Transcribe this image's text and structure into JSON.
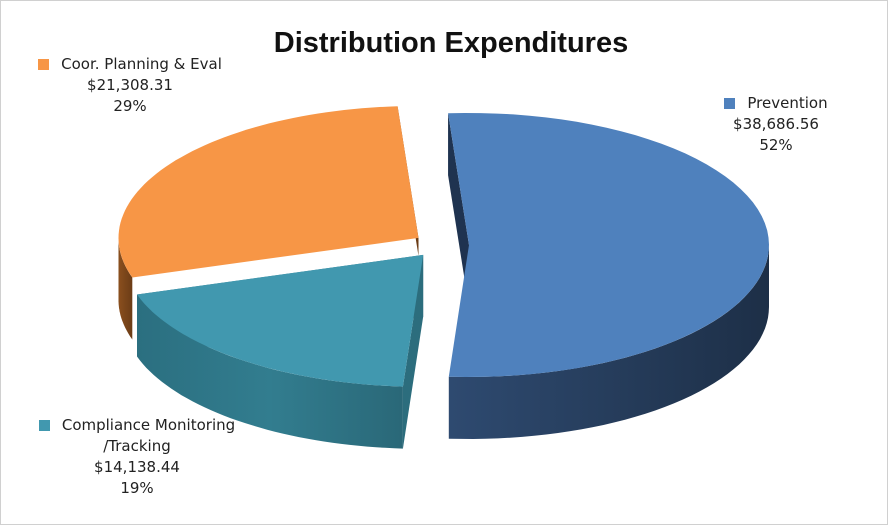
{
  "chart_data": {
    "type": "pie",
    "title": "Distribution Expenditures",
    "slices": [
      {
        "name": "Prevention",
        "value": 38686.56,
        "value_label": "$38,686.56",
        "percent_label": "52%",
        "color": "#4f81bd"
      },
      {
        "name": "Compliance Monitoring /Tracking",
        "label_lines": [
          "Compliance Monitoring",
          "/Tracking"
        ],
        "value": 14138.44,
        "value_label": "$14,138.44",
        "percent_label": "19%",
        "color": "#4198af"
      },
      {
        "name": "Coor. Planning & Eval",
        "value": 21308.31,
        "value_label": "$21,308.31",
        "percent_label": "29%",
        "color": "#f79646"
      }
    ],
    "style": "3d-exploded",
    "legend": "none"
  }
}
